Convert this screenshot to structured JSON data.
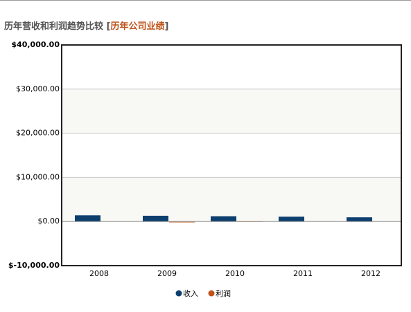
{
  "header": {
    "title": "历年营收和利润趋势比较",
    "link_open": "[",
    "link": "历年公司业绩",
    "link_close": "]"
  },
  "chart_data": {
    "type": "bar",
    "categories": [
      "2008",
      "2009",
      "2010",
      "2011",
      "2012"
    ],
    "series": [
      {
        "name": "收入",
        "color": "#0d3f6e",
        "values": [
          1400,
          1300,
          1200,
          1100,
          950
        ]
      },
      {
        "name": "利润",
        "color": "#c0541a",
        "values": [
          0,
          -200,
          -100,
          -50,
          0
        ]
      }
    ],
    "ylim": [
      -10000,
      40000
    ],
    "yticks": [
      {
        "value": -10000,
        "label": "$-10,000.00"
      },
      {
        "value": 0,
        "label": "$0.00"
      },
      {
        "value": 10000,
        "label": "$10,000.00"
      },
      {
        "value": 20000,
        "label": "$20,000.00"
      },
      {
        "value": 30000,
        "label": "$30,000.00"
      },
      {
        "value": 40000,
        "label": "$40,000.00"
      }
    ],
    "grid": true,
    "legend": "bottom"
  }
}
